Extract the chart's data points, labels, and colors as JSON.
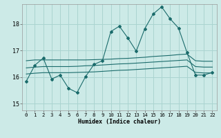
{
  "xlabel": "Humidex (Indice chaleur)",
  "bg_color": "#cceae7",
  "grid_color": "#aad4d0",
  "line_color": "#1a6b6b",
  "xlim": [
    -0.5,
    22.5
  ],
  "ylim": [
    14.75,
    18.75
  ],
  "yticks": [
    15,
    16,
    17,
    18
  ],
  "xticks": [
    0,
    1,
    2,
    3,
    4,
    5,
    6,
    7,
    8,
    9,
    10,
    11,
    12,
    13,
    14,
    15,
    16,
    17,
    18,
    19,
    20,
    21,
    22
  ],
  "series1_x": [
    0,
    1,
    2,
    3,
    4,
    5,
    6,
    7,
    8,
    9,
    10,
    11,
    12,
    13,
    14,
    15,
    16,
    17,
    18,
    19,
    20,
    21,
    22
  ],
  "series1_y": [
    15.85,
    16.45,
    16.72,
    15.93,
    16.08,
    15.58,
    15.42,
    16.02,
    16.48,
    16.62,
    17.72,
    17.92,
    17.48,
    16.98,
    17.82,
    18.38,
    18.65,
    18.2,
    17.85,
    16.93,
    16.08,
    16.08,
    16.18
  ],
  "series2_x": [
    0,
    1,
    2,
    3,
    4,
    5,
    6,
    7,
    8,
    9,
    10,
    11,
    12,
    13,
    14,
    15,
    16,
    17,
    18,
    19,
    20,
    21,
    22
  ],
  "series2_y": [
    16.62,
    16.65,
    16.65,
    16.65,
    16.65,
    16.65,
    16.65,
    16.65,
    16.66,
    16.67,
    16.68,
    16.7,
    16.71,
    16.73,
    16.75,
    16.78,
    16.8,
    16.82,
    16.85,
    16.87,
    16.62,
    16.6,
    16.6
  ],
  "series3_x": [
    0,
    1,
    2,
    3,
    4,
    5,
    6,
    7,
    8,
    9,
    10,
    11,
    12,
    13,
    14,
    15,
    16,
    17,
    18,
    19,
    20,
    21,
    22
  ],
  "series3_y": [
    16.35,
    16.38,
    16.4,
    16.4,
    16.4,
    16.4,
    16.41,
    16.43,
    16.44,
    16.46,
    16.48,
    16.5,
    16.51,
    16.53,
    16.55,
    16.57,
    16.59,
    16.61,
    16.63,
    16.65,
    16.4,
    16.38,
    16.38
  ],
  "series4_x": [
    0,
    1,
    2,
    3,
    4,
    5,
    6,
    7,
    8,
    9,
    10,
    11,
    12,
    13,
    14,
    15,
    16,
    17,
    18,
    19,
    20,
    21,
    22
  ],
  "series4_y": [
    16.12,
    16.15,
    16.17,
    16.17,
    16.17,
    16.17,
    16.18,
    16.19,
    16.2,
    16.22,
    16.24,
    16.26,
    16.27,
    16.29,
    16.31,
    16.33,
    16.35,
    16.37,
    16.39,
    16.41,
    16.18,
    16.16,
    16.16
  ]
}
